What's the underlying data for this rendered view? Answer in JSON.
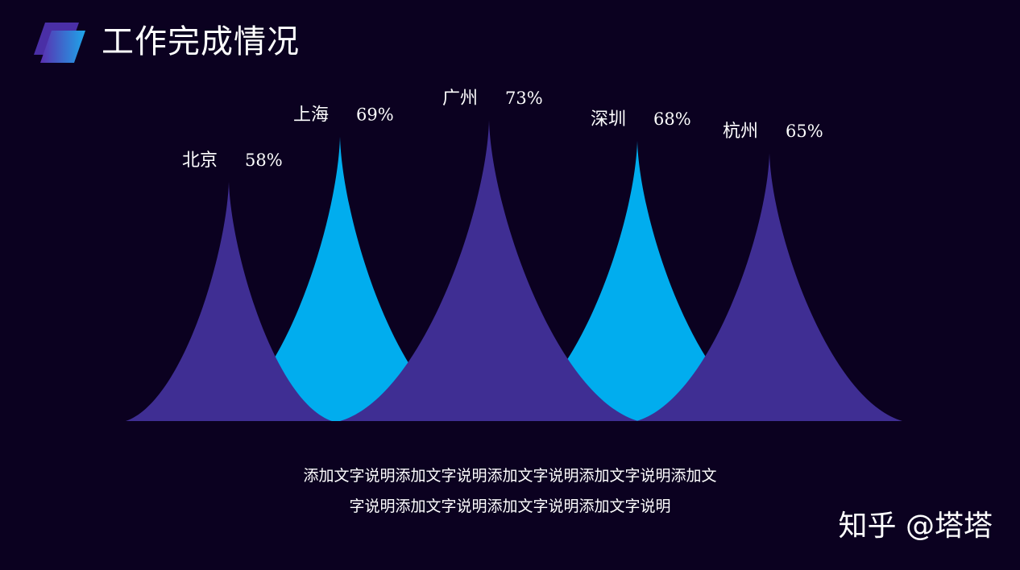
{
  "header": {
    "title": "工作完成情况",
    "logo_icon": "parallelogram-logo-icon"
  },
  "colors": {
    "background": "#0b0120",
    "purple": "#3f2e93",
    "blue": "#01adee",
    "logo_dark": "#4a2fa6",
    "logo_light": "#1ea6ea"
  },
  "chart_data": {
    "type": "area",
    "unit": "%",
    "categories": [
      "北京",
      "上海",
      "广州",
      "深圳",
      "杭州"
    ],
    "values": [
      58,
      69,
      73,
      68,
      65
    ],
    "value_labels": [
      "58%",
      "69%",
      "73%",
      "68%",
      "65%"
    ],
    "point_colors": [
      "#3f2e93",
      "#01adee",
      "#3f2e93",
      "#01adee",
      "#3f2e93"
    ],
    "title": "",
    "xlabel": "",
    "ylabel": "",
    "ylim": [
      0,
      100
    ],
    "grid": false,
    "legend": "none"
  },
  "description": {
    "lines": [
      "添加文字说明添加文字说明添加文字说明添加文字说明添加文",
      "字说明添加文字说明添加文字说明添加文字说明"
    ]
  },
  "watermark": {
    "text": "知乎 @塔塔"
  }
}
